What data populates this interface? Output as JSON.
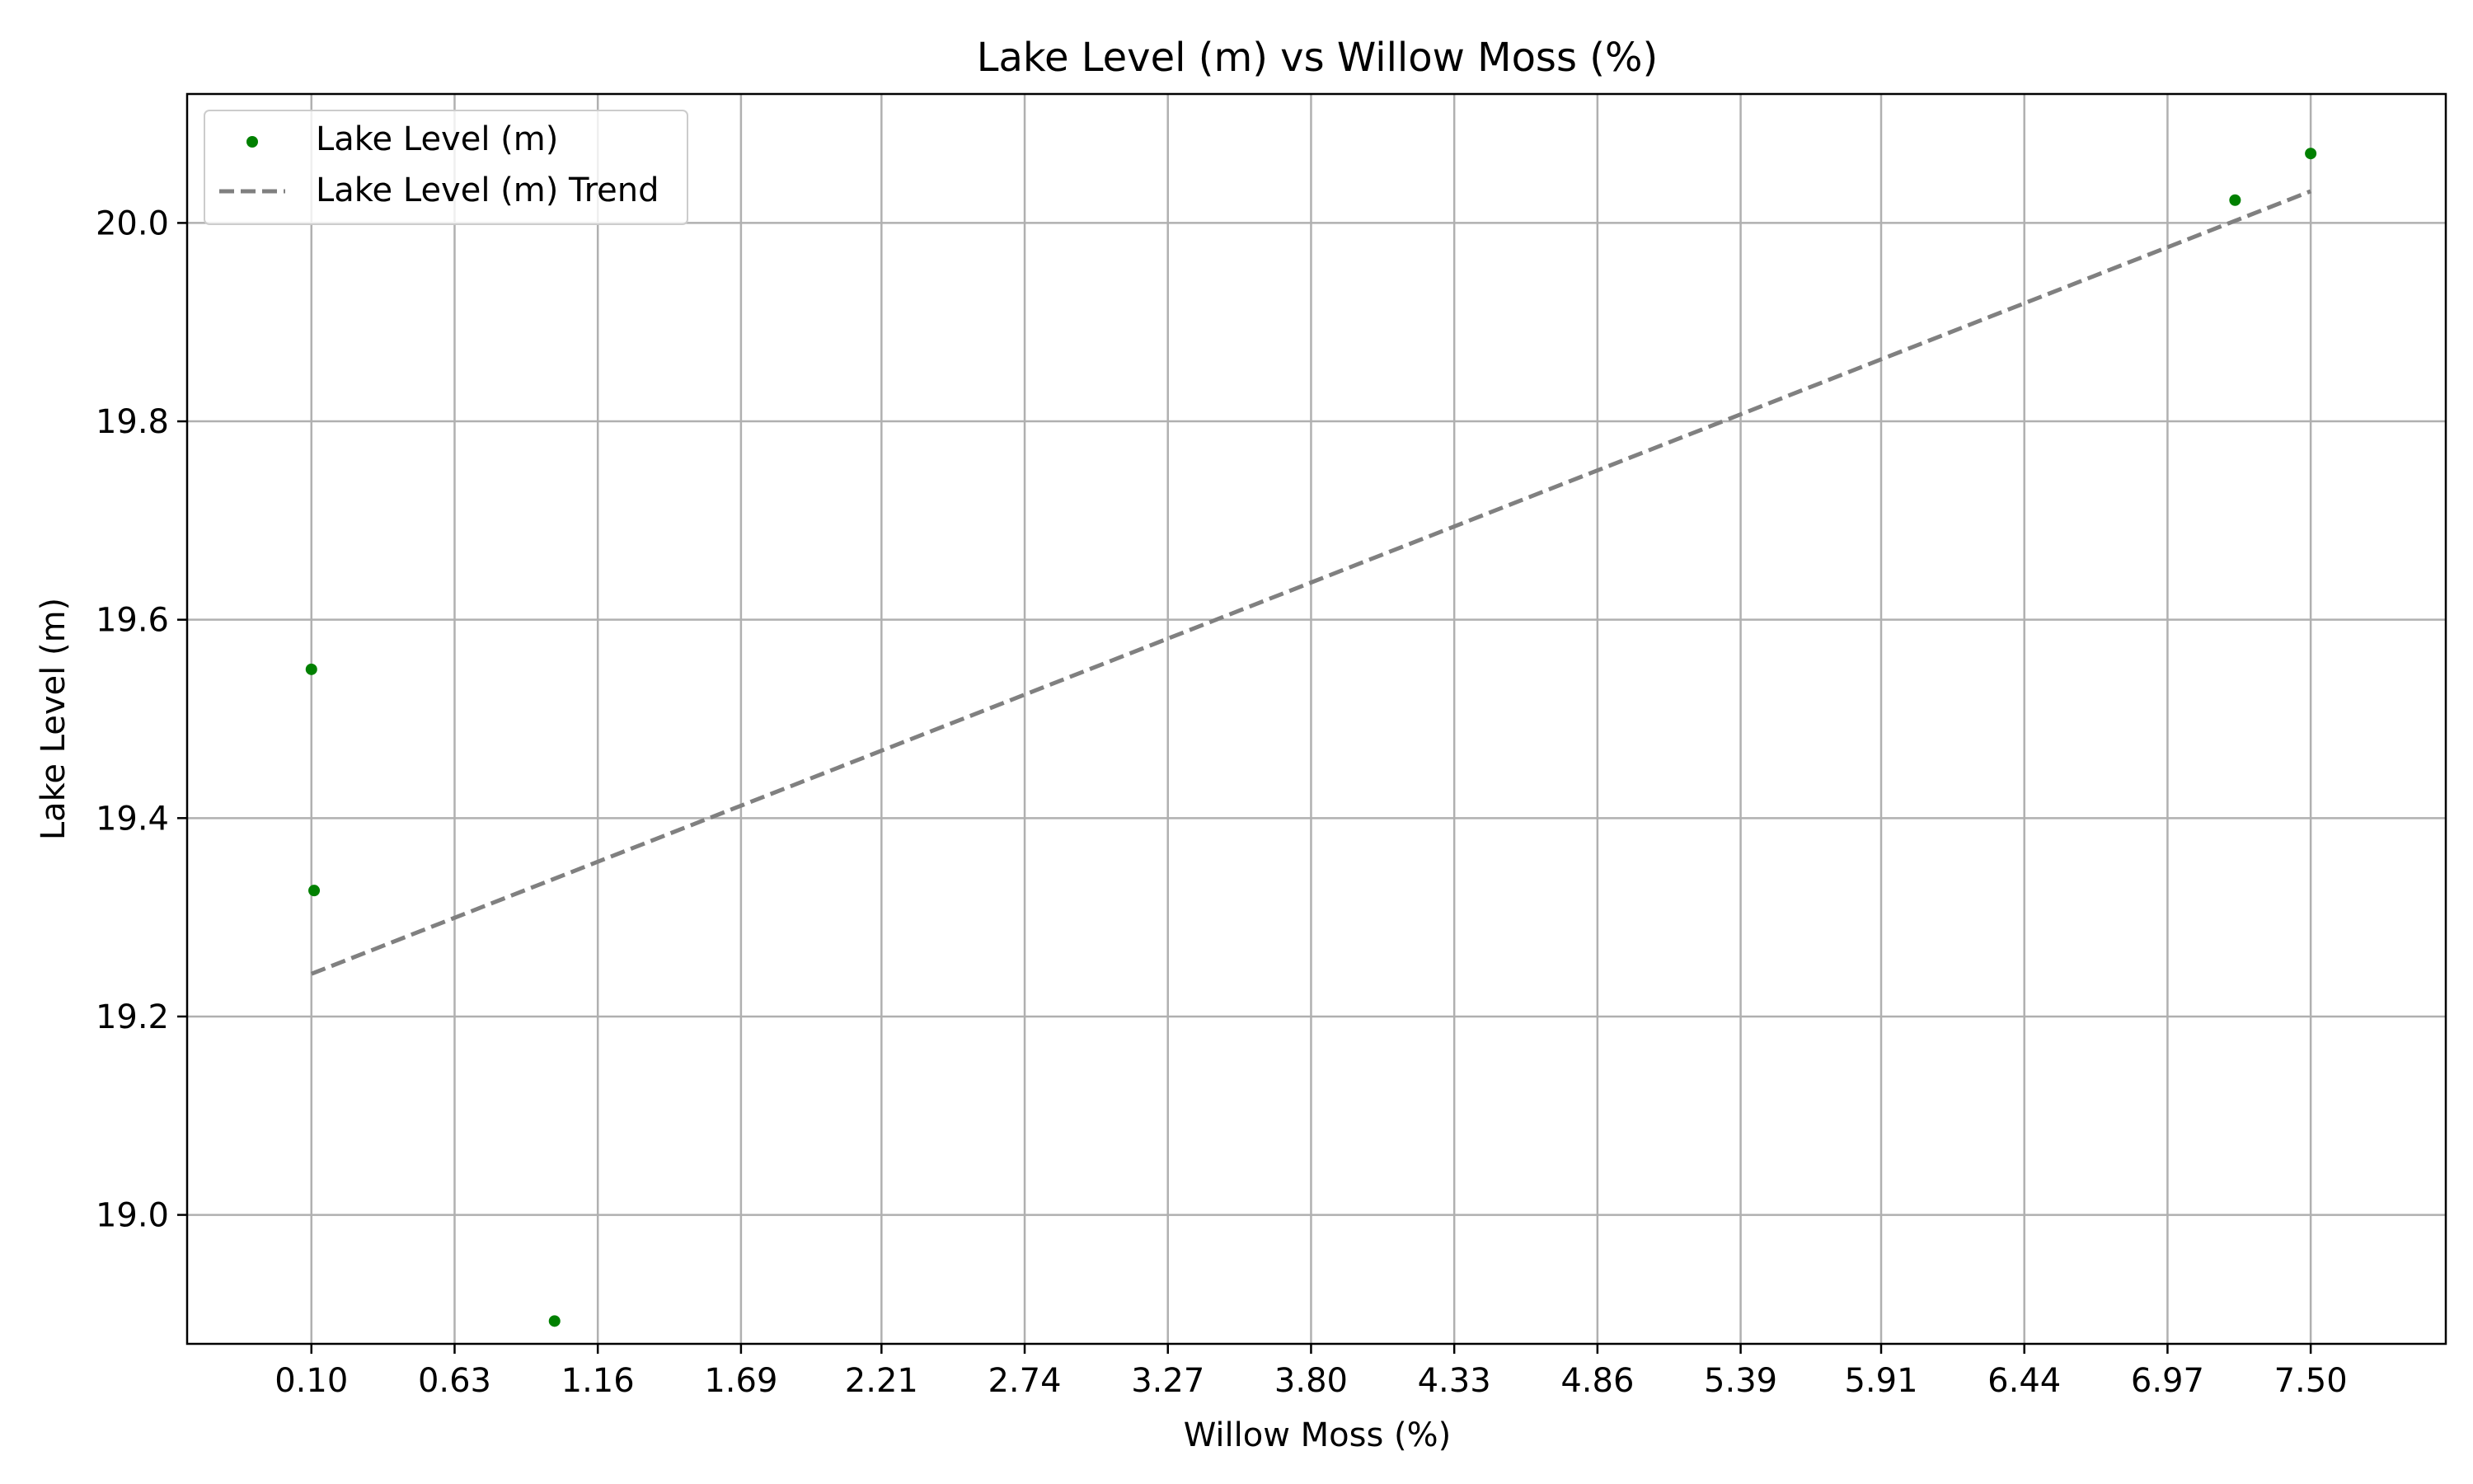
{
  "chart_data": {
    "type": "scatter",
    "title": "Lake Level (m) vs Willow Moss (%)",
    "xlabel": "Willow Moss (%)",
    "ylabel": "Lake Level (m)",
    "xlim": [
      -0.36,
      8.0
    ],
    "ylim": [
      18.87,
      20.13
    ],
    "x_ticks": [
      0.1,
      0.63,
      1.16,
      1.69,
      2.21,
      2.74,
      3.27,
      3.8,
      4.33,
      4.86,
      5.39,
      5.91,
      6.44,
      6.97,
      7.5
    ],
    "x_tick_labels": [
      "0.10",
      "0.63",
      "1.16",
      "1.69",
      "2.21",
      "2.74",
      "3.27",
      "3.80",
      "4.33",
      "4.86",
      "5.39",
      "5.91",
      "6.44",
      "6.97",
      "7.50"
    ],
    "y_ticks": [
      19.0,
      19.2,
      19.4,
      19.6,
      19.8,
      20.0
    ],
    "y_tick_labels": [
      "19.0",
      "19.2",
      "19.4",
      "19.6",
      "19.8",
      "20.0"
    ],
    "grid": true,
    "legend_position": "top-left",
    "series": [
      {
        "name": "Lake Level (m)",
        "kind": "scatter",
        "color": "#008000",
        "points": [
          {
            "x": 0.1,
            "y": 19.55
          },
          {
            "x": 0.11,
            "y": 19.327
          },
          {
            "x": 1.0,
            "y": 18.893
          },
          {
            "x": 7.22,
            "y": 20.023
          },
          {
            "x": 7.5,
            "y": 20.07
          }
        ]
      },
      {
        "name": "Lake Level (m) Trend",
        "kind": "line",
        "style": "dashed",
        "color": "#808080",
        "points": [
          {
            "x": 0.1,
            "y": 19.243
          },
          {
            "x": 7.5,
            "y": 20.032
          }
        ]
      }
    ]
  }
}
